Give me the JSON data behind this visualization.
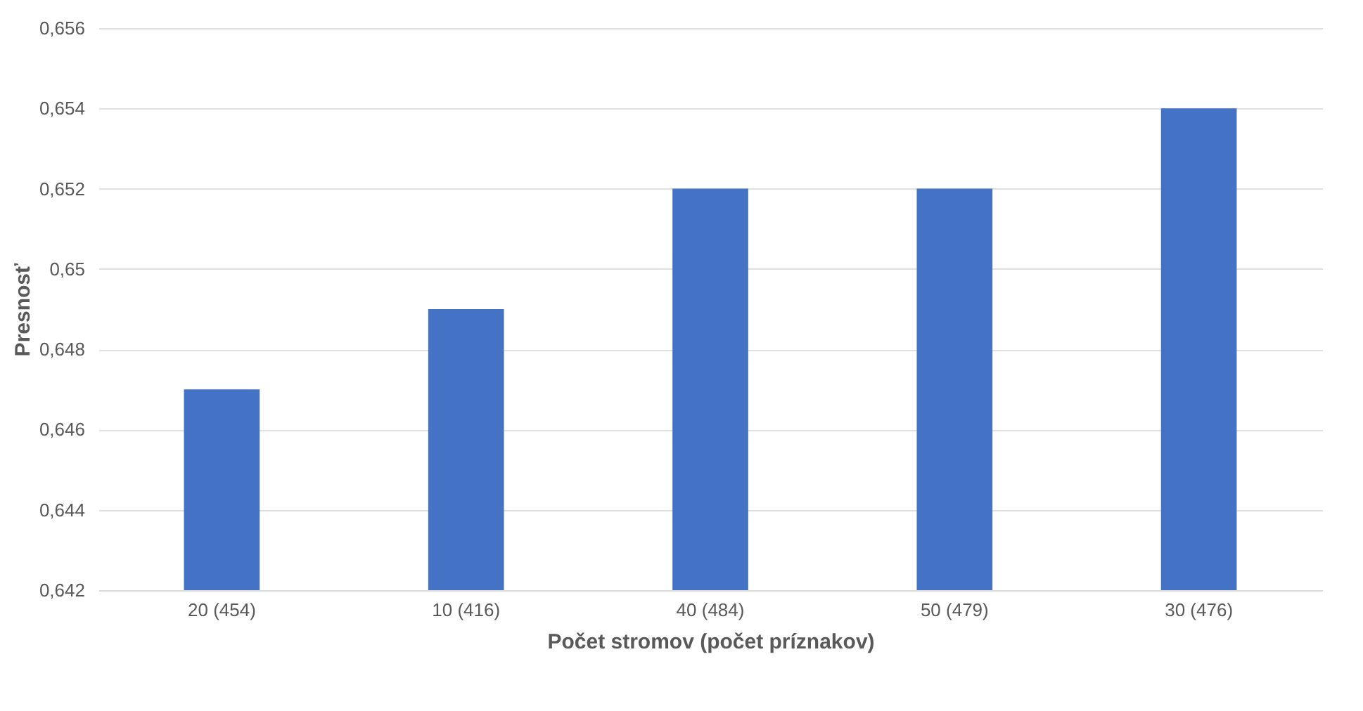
{
  "chart_data": {
    "type": "bar",
    "xlabel": "Počet stromov (počet príznakov)",
    "ylabel": "Presnosť",
    "categories": [
      "20 (454)",
      "10 (416)",
      "40 (484)",
      "50 (479)",
      "30 (476)"
    ],
    "values": [
      0.647,
      0.649,
      0.652,
      0.652,
      0.654
    ],
    "color": "#4472c4",
    "ylim": [
      0.642,
      0.656
    ],
    "yticks": [
      {
        "value": 0.642,
        "label": "0,642"
      },
      {
        "value": 0.644,
        "label": "0,644"
      },
      {
        "value": 0.646,
        "label": "0,646"
      },
      {
        "value": 0.648,
        "label": "0,648"
      },
      {
        "value": 0.65,
        "label": "0,65"
      },
      {
        "value": 0.652,
        "label": "0,652"
      },
      {
        "value": 0.654,
        "label": "0,654"
      },
      {
        "value": 0.656,
        "label": "0,656"
      }
    ],
    "grid": "y"
  }
}
